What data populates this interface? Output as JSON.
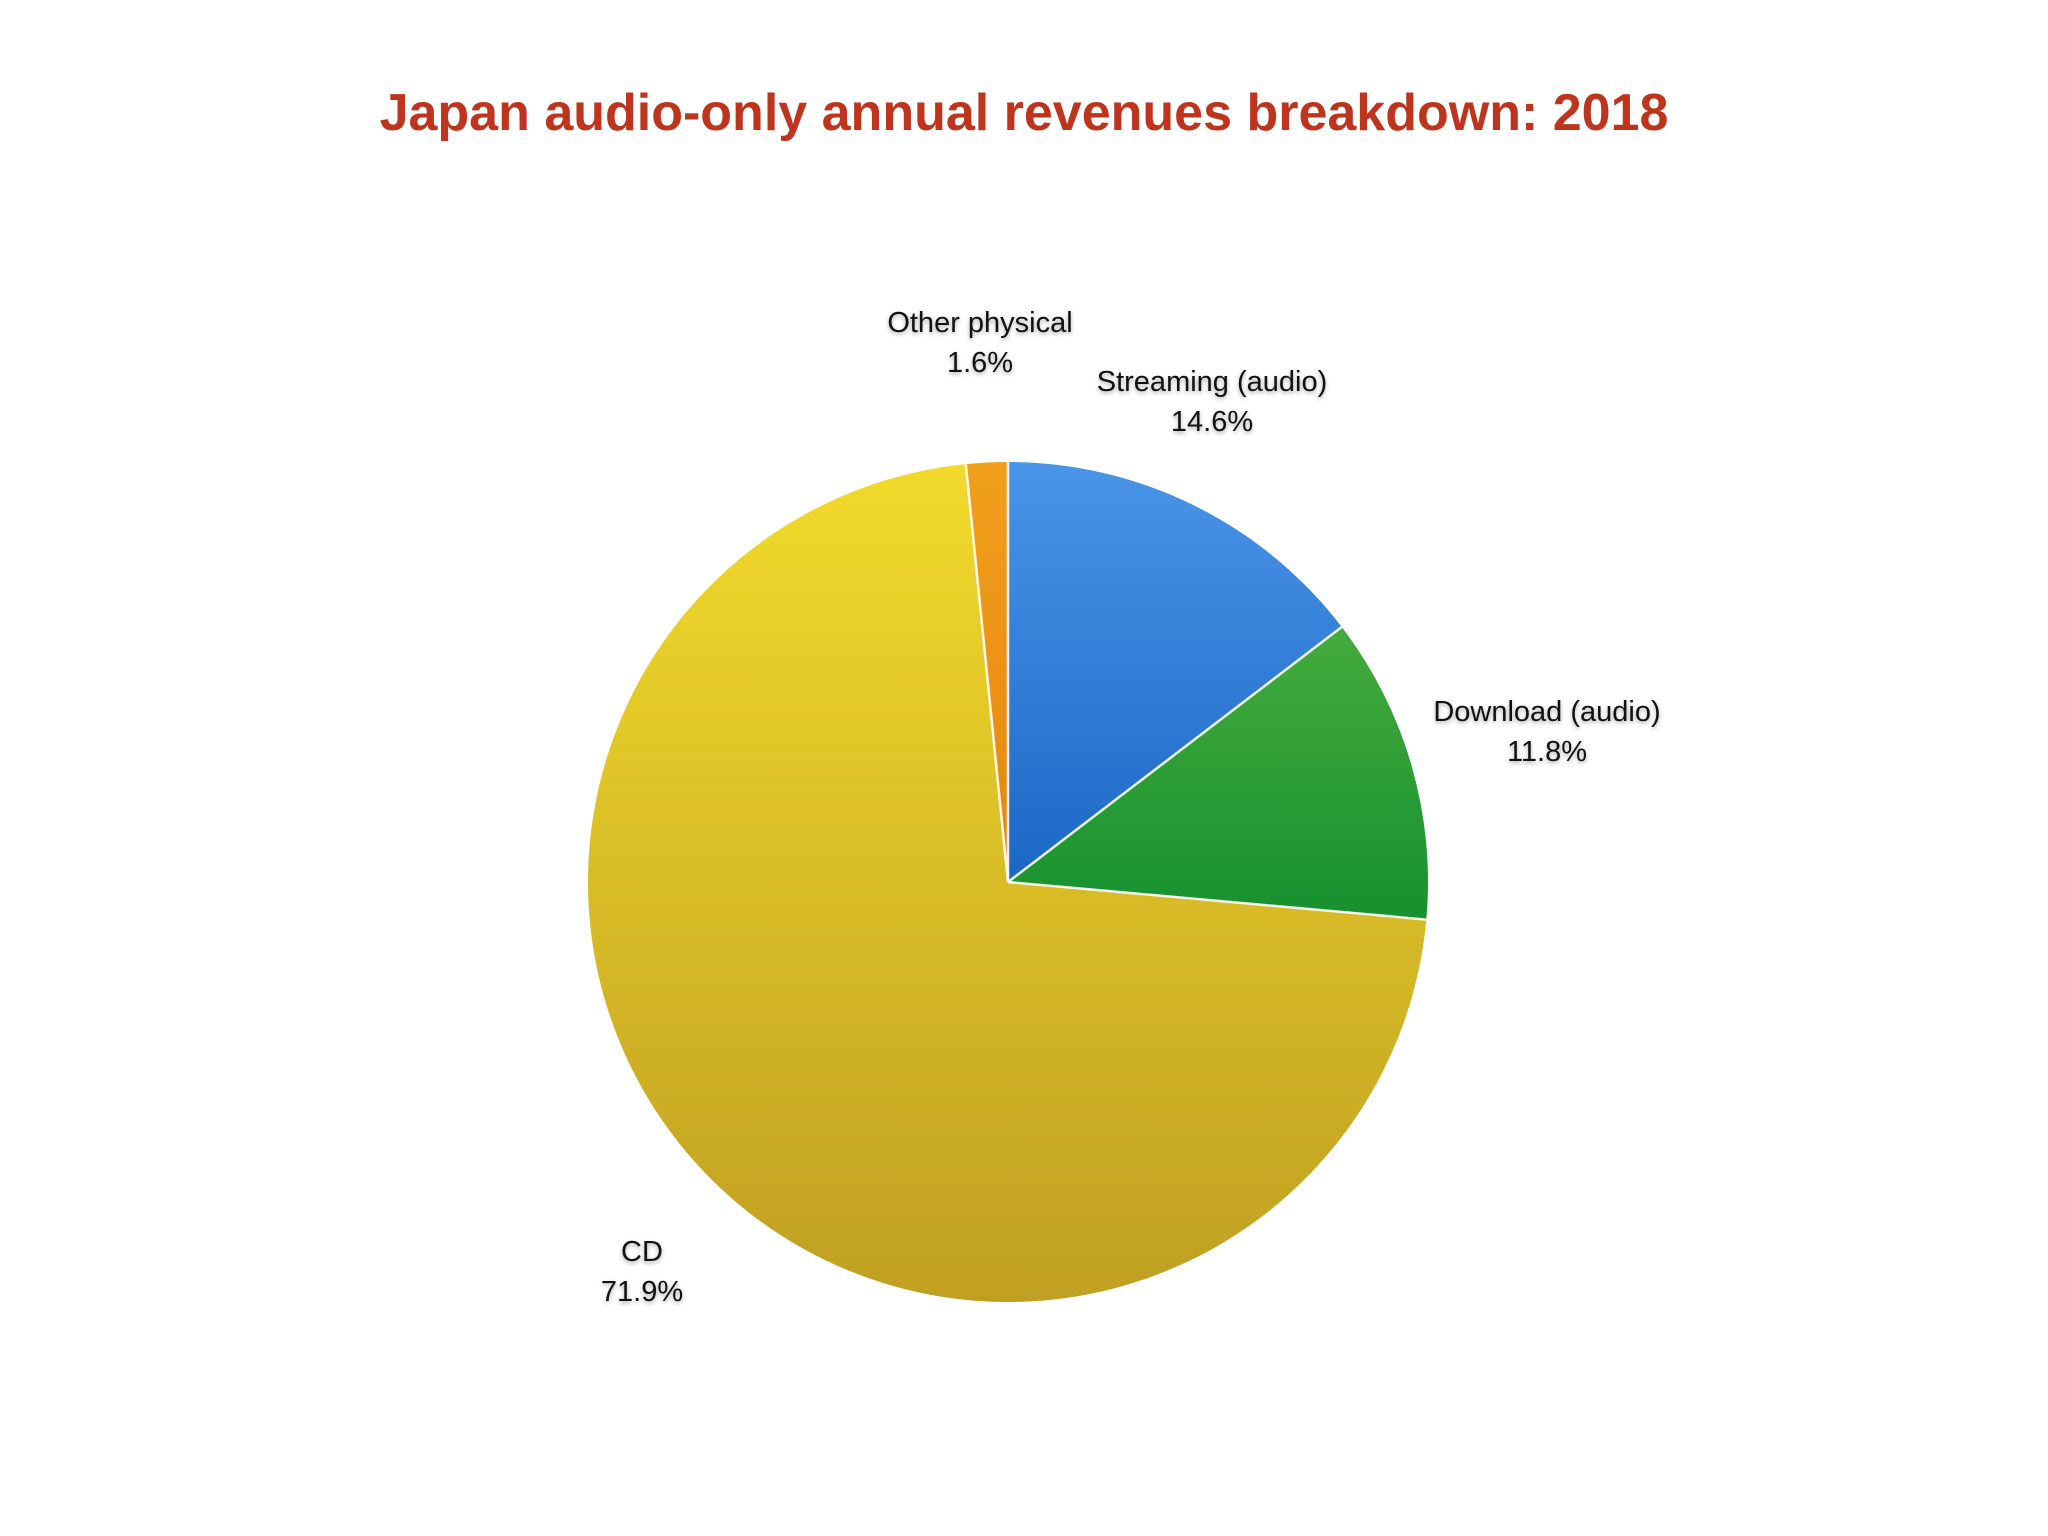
{
  "page": {
    "title": "Japan audio-only annual revenues breakdown: 2018",
    "title_color": "#bf341d",
    "background_color": "#ffffff"
  },
  "chart_data": {
    "type": "pie",
    "title": "Japan audio-only annual revenues breakdown: 2018",
    "start_angle_deg": 0,
    "direction": "clockwise",
    "legend": "none",
    "labels_position": "outside",
    "slices": [
      {
        "label": "Streaming (audio)",
        "value": 14.6,
        "pct_label": "14.6%",
        "color_top": "#4a95e8",
        "color_bottom": "#1b67c5"
      },
      {
        "label": "Download (audio)",
        "value": 11.8,
        "pct_label": "11.8%",
        "color_top": "#45ab3d",
        "color_bottom": "#15912e"
      },
      {
        "label": "CD",
        "value": 71.9,
        "pct_label": "71.9%",
        "color_top": "#f2da2b",
        "color_bottom": "#c09f22"
      },
      {
        "label": "Other physical",
        "value": 1.6,
        "pct_label": "1.6%",
        "color_top": "#f0a01b",
        "color_bottom": "#e5860e"
      }
    ],
    "divider_color": "#ffffff"
  },
  "labels": {
    "streaming": {
      "name": "Streaming (audio)",
      "pct": "14.6%"
    },
    "download": {
      "name": "Download (audio)",
      "pct": "11.8%"
    },
    "cd": {
      "name": "CD",
      "pct": "71.9%"
    },
    "other": {
      "name": "Other physical",
      "pct": "1.6%"
    }
  }
}
